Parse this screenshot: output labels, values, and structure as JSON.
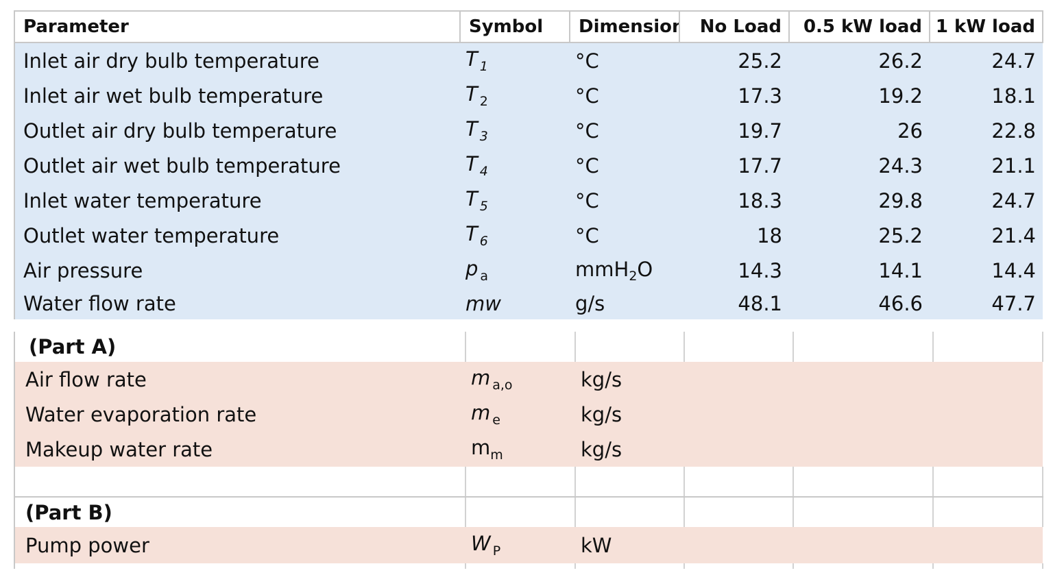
{
  "table1": {
    "headers": [
      "Parameter",
      "Symbol",
      "Dimension",
      "No Load",
      "0.5 kW load",
      "1 kW load"
    ],
    "rows": [
      {
        "param": "Inlet air dry bulb temperature",
        "sym": "T",
        "sub": "1",
        "dim": "°C",
        "no_load": "25.2",
        "half_kw": "26.2",
        "one_kw": "24.7"
      },
      {
        "param": "Inlet air wet bulb temperature",
        "sym": "T",
        "sub": "2",
        "dim": "°C",
        "no_load": "17.3",
        "half_kw": "19.2",
        "one_kw": "18.1"
      },
      {
        "param": "Outlet air dry bulb temperature",
        "sym": "T",
        "sub": "3",
        "dim": "°C",
        "no_load": "19.7",
        "half_kw": "26",
        "one_kw": "22.8"
      },
      {
        "param": "Outlet air wet bulb temperature",
        "sym": "T",
        "sub": "4",
        "dim": "°C",
        "no_load": "17.7",
        "half_kw": "24.3",
        "one_kw": "21.1"
      },
      {
        "param": "Inlet water temperature",
        "sym": "T",
        "sub": "5",
        "dim": "°C",
        "no_load": "18.3",
        "half_kw": "29.8",
        "one_kw": "24.7"
      },
      {
        "param": "Outlet water temperature",
        "sym": "T",
        "sub": "6",
        "dim": "°C",
        "no_load": "18",
        "half_kw": "25.2",
        "one_kw": "21.4"
      },
      {
        "param": "Air pressure",
        "sym": "p",
        "sub": "a",
        "dim_main": "mmH",
        "dim_sub": "2",
        "dim_tail": "O",
        "no_load": "14.3",
        "half_kw": "14.1",
        "one_kw": "14.4"
      },
      {
        "param": "Water flow rate",
        "sym": "mw",
        "dim": "g/s",
        "no_load": "48.1",
        "half_kw": "46.6",
        "one_kw": "47.7"
      }
    ]
  },
  "table2": {
    "part_a_label": "(Part A)",
    "part_a_rows": [
      {
        "param": "Air flow rate",
        "sym": "m",
        "sub": "a,o",
        "dim": "kg/s"
      },
      {
        "param": "Water evaporation rate",
        "sym": "m",
        "sub": "e",
        "dim": "kg/s"
      },
      {
        "param": "Makeup water rate",
        "sym": "m",
        "sub": "m",
        "dim": "kg/s"
      }
    ],
    "part_b_label": "(Part B)",
    "part_b_rows": [
      {
        "param": "Pump power",
        "sym": "W",
        "sub": "P",
        "dim": "kW"
      }
    ]
  },
  "colors": {
    "measured_fill": "#dde9f6",
    "result_fill": "#f6e1d9",
    "grid": "#c8c8c8"
  }
}
